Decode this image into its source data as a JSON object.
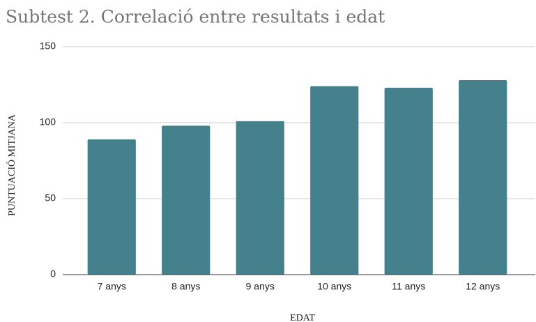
{
  "chart_data": {
    "type": "bar",
    "title": "Subtest 2. Correlació entre resultats i edat",
    "x_label": "EDAT",
    "y_label": "PUNTUACIÓ MITJANA",
    "categories": [
      "7 anys",
      "8 anys",
      "9 anys",
      "10 anys",
      "11 anys",
      "12 anys"
    ],
    "values": [
      89,
      98,
      101,
      124,
      123,
      128
    ],
    "color": "#45808d",
    "ylim": [
      0,
      150
    ],
    "yticks": [
      0,
      50,
      100,
      150
    ],
    "grid": true
  }
}
